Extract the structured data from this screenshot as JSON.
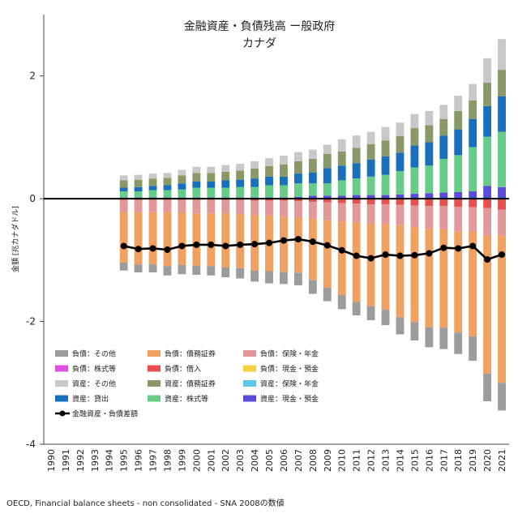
{
  "chart_data": {
    "type": "bar",
    "title": "金融資産・負債残高 ー般政府",
    "subtitle": "カナダ",
    "xlabel": "",
    "ylabel": "金額 [兆カナダドル]",
    "ylim": [
      -4,
      3
    ],
    "yticks": [
      "2",
      "0",
      "-2",
      "-4"
    ],
    "ytick_values": [
      2,
      0,
      -2,
      -4
    ],
    "source": "OECD, Financial balance sheets - non consolidated - SNA 2008の数値",
    "categories": [
      "1990",
      "1991",
      "1992",
      "1993",
      "1994",
      "1995",
      "1996",
      "1997",
      "1998",
      "1999",
      "2000",
      "2001",
      "2002",
      "2003",
      "2004",
      "2005",
      "2006",
      "2007",
      "2008",
      "2009",
      "2010",
      "2011",
      "2012",
      "2013",
      "2014",
      "2015",
      "2016",
      "2017",
      "2018",
      "2019",
      "2020",
      "2021"
    ],
    "asset_series": [
      {
        "name": "資産：現金・預金",
        "color": "#5a4bdc",
        "values": [
          0,
          0,
          0,
          0,
          0,
          0.02,
          0.02,
          0.02,
          0.02,
          0.02,
          0.02,
          0.02,
          0.02,
          0.02,
          0.02,
          0.02,
          0.02,
          0.03,
          0.05,
          0.05,
          0.05,
          0.06,
          0.06,
          0.06,
          0.07,
          0.08,
          0.09,
          0.1,
          0.11,
          0.12,
          0.21,
          0.19
        ]
      },
      {
        "name": "資産：保険・年金",
        "color": "#5bc8e8",
        "values": [
          0,
          0,
          0,
          0,
          0,
          0,
          0,
          0,
          0,
          0,
          0,
          0,
          0,
          0,
          0,
          0,
          0,
          0,
          0,
          0,
          0,
          0,
          0,
          0,
          0,
          0,
          0,
          0,
          0,
          0,
          0,
          0
        ]
      },
      {
        "name": "資産：株式等",
        "color": "#66cc88",
        "values": [
          0,
          0,
          0,
          0,
          0,
          0.1,
          0.1,
          0.12,
          0.12,
          0.13,
          0.16,
          0.16,
          0.16,
          0.17,
          0.17,
          0.2,
          0.2,
          0.22,
          0.2,
          0.2,
          0.25,
          0.27,
          0.3,
          0.33,
          0.38,
          0.43,
          0.45,
          0.55,
          0.6,
          0.72,
          0.8,
          0.9
        ]
      },
      {
        "name": "資産：貸出",
        "color": "#1a6fbd",
        "values": [
          0,
          0,
          0,
          0,
          0,
          0.06,
          0.07,
          0.07,
          0.08,
          0.1,
          0.1,
          0.1,
          0.12,
          0.12,
          0.14,
          0.14,
          0.14,
          0.16,
          0.18,
          0.25,
          0.24,
          0.25,
          0.28,
          0.3,
          0.3,
          0.36,
          0.38,
          0.38,
          0.42,
          0.46,
          0.5,
          0.58
        ]
      },
      {
        "name": "資産：債務証券",
        "color": "#889966",
        "values": [
          0,
          0,
          0,
          0,
          0,
          0.12,
          0.12,
          0.12,
          0.12,
          0.13,
          0.14,
          0.14,
          0.14,
          0.15,
          0.16,
          0.17,
          0.2,
          0.2,
          0.22,
          0.23,
          0.23,
          0.25,
          0.25,
          0.26,
          0.27,
          0.28,
          0.28,
          0.27,
          0.3,
          0.3,
          0.38,
          0.43
        ]
      },
      {
        "name": "資産：その他",
        "color": "#c8c8c8",
        "values": [
          0,
          0,
          0,
          0,
          0,
          0.08,
          0.08,
          0.08,
          0.08,
          0.09,
          0.1,
          0.1,
          0.11,
          0.11,
          0.12,
          0.13,
          0.14,
          0.15,
          0.15,
          0.15,
          0.2,
          0.2,
          0.2,
          0.22,
          0.22,
          0.23,
          0.23,
          0.23,
          0.25,
          0.27,
          0.4,
          0.5
        ]
      }
    ],
    "liability_series": [
      {
        "name": "負債：現金・預金",
        "color": "#f5d040",
        "values": [
          0,
          0,
          0,
          0,
          0,
          0,
          0,
          0,
          0,
          0,
          0,
          0,
          0,
          0,
          0,
          0,
          0,
          0,
          0,
          0,
          0,
          0,
          0,
          0,
          0,
          0,
          0,
          0,
          0,
          0,
          0,
          0
        ]
      },
      {
        "name": "負債：借入",
        "color": "#e85050",
        "values": [
          0,
          0,
          0,
          0,
          0,
          0.02,
          0.02,
          0.02,
          0.02,
          0.02,
          0.02,
          0.02,
          0.02,
          0.02,
          0.03,
          0.03,
          0.03,
          0.04,
          0.05,
          0.06,
          0.07,
          0.08,
          0.09,
          0.09,
          0.1,
          0.11,
          0.12,
          0.12,
          0.13,
          0.14,
          0.15,
          0.18
        ]
      },
      {
        "name": "負債：株式等",
        "color": "#e050e0",
        "values": [
          0,
          0,
          0,
          0,
          0,
          0,
          0,
          0,
          0,
          0,
          0,
          0,
          0,
          0,
          0,
          0,
          0,
          0,
          0,
          0,
          0,
          0,
          0,
          0,
          0,
          0,
          0,
          0,
          0,
          0,
          0,
          0
        ]
      },
      {
        "name": "負債：保険・年金",
        "color": "#e09898",
        "values": [
          0,
          0,
          0,
          0,
          0,
          0.2,
          0.2,
          0.2,
          0.2,
          0.21,
          0.22,
          0.22,
          0.22,
          0.23,
          0.24,
          0.25,
          0.26,
          0.27,
          0.28,
          0.29,
          0.3,
          0.3,
          0.31,
          0.32,
          0.33,
          0.35,
          0.37,
          0.38,
          0.4,
          0.4,
          0.45,
          0.42
        ]
      },
      {
        "name": "負債：債務証券",
        "color": "#f0a060",
        "values": [
          0,
          0,
          0,
          0,
          0,
          0.82,
          0.85,
          0.85,
          0.88,
          0.85,
          0.85,
          0.86,
          0.88,
          0.88,
          0.9,
          0.9,
          0.9,
          0.9,
          1.0,
          1.1,
          1.2,
          1.3,
          1.35,
          1.4,
          1.5,
          1.55,
          1.6,
          1.6,
          1.65,
          1.7,
          2.25,
          2.4
        ]
      },
      {
        "name": "負債：その他",
        "color": "#9c9c9c",
        "values": [
          0,
          0,
          0,
          0,
          0,
          0.13,
          0.13,
          0.13,
          0.15,
          0.15,
          0.15,
          0.15,
          0.16,
          0.17,
          0.18,
          0.2,
          0.2,
          0.2,
          0.22,
          0.22,
          0.23,
          0.22,
          0.23,
          0.25,
          0.28,
          0.3,
          0.33,
          0.35,
          0.35,
          0.4,
          0.45,
          0.45
        ]
      }
    ],
    "line_series": {
      "name": "金融資産・負債差額",
      "color": "#000000",
      "values": [
        null,
        null,
        null,
        null,
        null,
        -0.77,
        -0.82,
        -0.81,
        -0.83,
        -0.77,
        -0.75,
        -0.75,
        -0.77,
        -0.75,
        -0.74,
        -0.72,
        -0.68,
        -0.66,
        -0.7,
        -0.76,
        -0.84,
        -0.93,
        -0.97,
        -0.91,
        -0.93,
        -0.92,
        -0.89,
        -0.8,
        -0.81,
        -0.77,
        -0.99,
        -0.91
      ]
    },
    "legend": [
      {
        "label": "負債：その他",
        "color": "#9c9c9c",
        "kind": "bar"
      },
      {
        "label": "負債：債務証券",
        "color": "#f0a060",
        "kind": "bar"
      },
      {
        "label": "負債：保険・年金",
        "color": "#e09898",
        "kind": "bar"
      },
      {
        "label": "負債：株式等",
        "color": "#e050e0",
        "kind": "bar"
      },
      {
        "label": "負債：借入",
        "color": "#e85050",
        "kind": "bar"
      },
      {
        "label": "負債：現金・預金",
        "color": "#f5d040",
        "kind": "bar"
      },
      {
        "label": "資産：その他",
        "color": "#c8c8c8",
        "kind": "bar"
      },
      {
        "label": "資産：債務証券",
        "color": "#889966",
        "kind": "bar"
      },
      {
        "label": "資産：保険・年金",
        "color": "#5bc8e8",
        "kind": "bar"
      },
      {
        "label": "資産：貸出",
        "color": "#1a6fbd",
        "kind": "bar"
      },
      {
        "label": "資産：株式等",
        "color": "#66cc88",
        "kind": "bar"
      },
      {
        "label": "資産：現金・預金",
        "color": "#5a4bdc",
        "kind": "bar"
      },
      {
        "label": "金融資産・負債差額",
        "color": "#000000",
        "kind": "line"
      }
    ],
    "legend_position": "lower-left",
    "grid": false
  }
}
